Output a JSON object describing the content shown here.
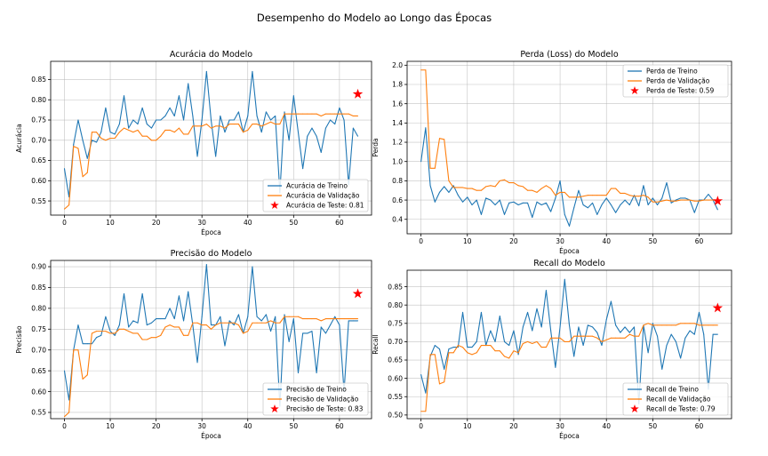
{
  "suptitle": "Desempenho do Modelo ao Longo das Épocas",
  "colors": {
    "train": "#1f77b4",
    "validation": "#ff7f0e",
    "test": "#ff0000"
  },
  "chart_data": [
    {
      "type": "line",
      "title": "Acurácia do Modelo",
      "xlabel": "Época",
      "ylabel": "Acurácia",
      "xlim": [
        -3,
        67
      ],
      "ylim": [
        0.515,
        0.895
      ],
      "xticks": [
        0,
        10,
        20,
        30,
        40,
        50,
        60
      ],
      "yticks": [
        0.55,
        0.6,
        0.65,
        0.7,
        0.75,
        0.8,
        0.85
      ],
      "ytick_labels": [
        "0.55",
        "0.60",
        "0.65",
        "0.70",
        "0.75",
        "0.80",
        "0.85"
      ],
      "grid": true,
      "legend_position": "bottom-right",
      "series": [
        {
          "name": "Acurácia de Treino",
          "color": "#1f77b4",
          "values": [
            0.63,
            0.56,
            0.69,
            0.75,
            0.7,
            0.655,
            0.7,
            0.695,
            0.72,
            0.78,
            0.72,
            0.715,
            0.74,
            0.81,
            0.73,
            0.75,
            0.74,
            0.78,
            0.74,
            0.73,
            0.75,
            0.75,
            0.76,
            0.78,
            0.76,
            0.81,
            0.75,
            0.84,
            0.76,
            0.66,
            0.75,
            0.87,
            0.75,
            0.66,
            0.76,
            0.72,
            0.75,
            0.75,
            0.77,
            0.72,
            0.76,
            0.87,
            0.76,
            0.72,
            0.77,
            0.75,
            0.76,
            0.57,
            0.77,
            0.7,
            0.81,
            0.72,
            0.63,
            0.71,
            0.73,
            0.71,
            0.67,
            0.73,
            0.75,
            0.74,
            0.78,
            0.75,
            0.59,
            0.73,
            0.71
          ]
        },
        {
          "name": "Acurácia de Validação",
          "color": "#ff7f0e",
          "values": [
            0.53,
            0.54,
            0.685,
            0.68,
            0.61,
            0.62,
            0.72,
            0.72,
            0.705,
            0.7,
            0.705,
            0.705,
            0.72,
            0.73,
            0.725,
            0.72,
            0.725,
            0.71,
            0.71,
            0.7,
            0.7,
            0.71,
            0.725,
            0.725,
            0.72,
            0.73,
            0.715,
            0.715,
            0.735,
            0.735,
            0.735,
            0.74,
            0.73,
            0.735,
            0.735,
            0.73,
            0.74,
            0.74,
            0.74,
            0.72,
            0.725,
            0.74,
            0.74,
            0.735,
            0.74,
            0.745,
            0.74,
            0.74,
            0.765,
            0.765,
            0.765,
            0.765,
            0.765,
            0.765,
            0.765,
            0.765,
            0.76,
            0.765,
            0.765,
            0.765,
            0.765,
            0.765,
            0.765,
            0.76,
            0.76
          ]
        },
        {
          "name": "Acurácia de Teste: 0.81",
          "color": "#ff0000",
          "kind": "scatter",
          "x": [
            64
          ],
          "values": [
            0.814
          ]
        }
      ]
    },
    {
      "type": "line",
      "title": "Perda (Loss) do Modelo",
      "xlabel": "Época",
      "ylabel": "Perda",
      "xlim": [
        -3,
        67
      ],
      "ylim": [
        0.25,
        2.04
      ],
      "xticks": [
        0,
        10,
        20,
        30,
        40,
        50,
        60
      ],
      "yticks": [
        0.4,
        0.6,
        0.8,
        1.0,
        1.2,
        1.4,
        1.6,
        1.8,
        2.0
      ],
      "ytick_labels": [
        "0.4",
        "0.6",
        "0.8",
        "1.0",
        "1.2",
        "1.4",
        "1.6",
        "1.8",
        "2.0"
      ],
      "grid": true,
      "legend_position": "top-right",
      "series": [
        {
          "name": "Perda de Treino",
          "color": "#1f77b4",
          "values": [
            1.0,
            1.35,
            0.75,
            0.58,
            0.68,
            0.74,
            0.68,
            0.75,
            0.65,
            0.58,
            0.63,
            0.55,
            0.6,
            0.45,
            0.62,
            0.6,
            0.55,
            0.6,
            0.45,
            0.57,
            0.58,
            0.55,
            0.57,
            0.57,
            0.42,
            0.58,
            0.55,
            0.57,
            0.48,
            0.62,
            0.8,
            0.45,
            0.33,
            0.52,
            0.7,
            0.55,
            0.52,
            0.57,
            0.45,
            0.55,
            0.62,
            0.55,
            0.47,
            0.55,
            0.6,
            0.55,
            0.65,
            0.54,
            0.75,
            0.55,
            0.62,
            0.55,
            0.62,
            0.78,
            0.57,
            0.6,
            0.62,
            0.62,
            0.6,
            0.47,
            0.6,
            0.6,
            0.66,
            0.6,
            0.5
          ]
        },
        {
          "name": "Perda de Validação",
          "color": "#ff7f0e",
          "values": [
            1.95,
            1.95,
            0.93,
            0.93,
            1.24,
            1.23,
            0.8,
            0.73,
            0.73,
            0.73,
            0.72,
            0.72,
            0.7,
            0.7,
            0.74,
            0.75,
            0.74,
            0.8,
            0.81,
            0.78,
            0.78,
            0.75,
            0.74,
            0.7,
            0.7,
            0.68,
            0.72,
            0.75,
            0.72,
            0.65,
            0.68,
            0.68,
            0.63,
            0.63,
            0.63,
            0.64,
            0.65,
            0.65,
            0.65,
            0.65,
            0.65,
            0.72,
            0.72,
            0.67,
            0.67,
            0.65,
            0.64,
            0.64,
            0.65,
            0.63,
            0.58,
            0.58,
            0.59,
            0.6,
            0.59,
            0.59,
            0.6,
            0.6,
            0.6,
            0.59,
            0.59,
            0.6,
            0.6,
            0.6,
            0.6
          ]
        },
        {
          "name": "Perda de Teste: 0.59",
          "color": "#ff0000",
          "kind": "scatter",
          "x": [
            64
          ],
          "values": [
            0.59
          ]
        }
      ]
    },
    {
      "type": "line",
      "title": "Precisão do Modelo",
      "xlabel": "Época",
      "ylabel": "Precisão",
      "xlim": [
        -3,
        67
      ],
      "ylim": [
        0.535,
        0.915
      ],
      "xticks": [
        0,
        10,
        20,
        30,
        40,
        50,
        60
      ],
      "yticks": [
        0.55,
        0.6,
        0.65,
        0.7,
        0.75,
        0.8,
        0.85,
        0.9
      ],
      "ytick_labels": [
        "0.55",
        "0.60",
        "0.65",
        "0.70",
        "0.75",
        "0.80",
        "0.85",
        "0.90"
      ],
      "grid": true,
      "legend_position": "bottom-right",
      "series": [
        {
          "name": "Precisão de Treino",
          "color": "#1f77b4",
          "values": [
            0.65,
            0.58,
            0.7,
            0.76,
            0.715,
            0.715,
            0.715,
            0.73,
            0.735,
            0.78,
            0.745,
            0.735,
            0.76,
            0.835,
            0.755,
            0.77,
            0.765,
            0.835,
            0.76,
            0.765,
            0.775,
            0.775,
            0.775,
            0.8,
            0.775,
            0.83,
            0.77,
            0.84,
            0.76,
            0.67,
            0.78,
            0.905,
            0.76,
            0.76,
            0.78,
            0.71,
            0.77,
            0.76,
            0.785,
            0.74,
            0.78,
            0.9,
            0.78,
            0.77,
            0.785,
            0.745,
            0.78,
            0.565,
            0.785,
            0.72,
            0.775,
            0.645,
            0.74,
            0.74,
            0.745,
            0.645,
            0.755,
            0.74,
            0.76,
            0.78,
            0.76,
            0.6,
            0.77,
            0.77,
            0.77
          ]
        },
        {
          "name": "Precisão de Validação",
          "color": "#ff7f0e",
          "values": [
            0.54,
            0.55,
            0.7,
            0.7,
            0.63,
            0.64,
            0.74,
            0.745,
            0.745,
            0.745,
            0.74,
            0.74,
            0.75,
            0.75,
            0.745,
            0.74,
            0.74,
            0.725,
            0.725,
            0.73,
            0.73,
            0.735,
            0.755,
            0.76,
            0.755,
            0.755,
            0.735,
            0.735,
            0.765,
            0.765,
            0.76,
            0.76,
            0.75,
            0.76,
            0.765,
            0.765,
            0.765,
            0.765,
            0.76,
            0.74,
            0.745,
            0.765,
            0.765,
            0.765,
            0.765,
            0.77,
            0.765,
            0.765,
            0.78,
            0.78,
            0.78,
            0.78,
            0.775,
            0.775,
            0.775,
            0.775,
            0.77,
            0.775,
            0.775,
            0.775,
            0.775,
            0.775,
            0.775,
            0.775,
            0.775
          ]
        },
        {
          "name": "Precisão de Teste: 0.83",
          "color": "#ff0000",
          "kind": "scatter",
          "x": [
            64
          ],
          "values": [
            0.835
          ]
        }
      ]
    },
    {
      "type": "line",
      "title": "Recall do Modelo",
      "xlabel": "Época",
      "ylabel": "Recall",
      "xlim": [
        -3,
        67
      ],
      "ylim": [
        0.49,
        0.895
      ],
      "xticks": [
        0,
        10,
        20,
        30,
        40,
        50,
        60
      ],
      "yticks": [
        0.5,
        0.55,
        0.6,
        0.65,
        0.7,
        0.75,
        0.8,
        0.85
      ],
      "ytick_labels": [
        "0.50",
        "0.55",
        "0.60",
        "0.65",
        "0.70",
        "0.75",
        "0.80",
        "0.85"
      ],
      "grid": true,
      "legend_position": "bottom-right",
      "series": [
        {
          "name": "Recall de Treino",
          "color": "#1f77b4",
          "values": [
            0.61,
            0.56,
            0.66,
            0.69,
            0.68,
            0.625,
            0.68,
            0.685,
            0.685,
            0.78,
            0.685,
            0.685,
            0.7,
            0.78,
            0.69,
            0.73,
            0.7,
            0.77,
            0.7,
            0.69,
            0.73,
            0.665,
            0.74,
            0.78,
            0.73,
            0.79,
            0.74,
            0.84,
            0.73,
            0.63,
            0.74,
            0.87,
            0.745,
            0.66,
            0.74,
            0.69,
            0.745,
            0.74,
            0.725,
            0.69,
            0.76,
            0.81,
            0.745,
            0.725,
            0.74,
            0.725,
            0.74,
            0.53,
            0.745,
            0.67,
            0.75,
            0.715,
            0.625,
            0.69,
            0.72,
            0.7,
            0.655,
            0.71,
            0.73,
            0.72,
            0.78,
            0.72,
            0.57,
            0.72,
            0.72
          ]
        },
        {
          "name": "Recall de Validação",
          "color": "#ff7f0e",
          "values": [
            0.51,
            0.51,
            0.665,
            0.665,
            0.585,
            0.59,
            0.67,
            0.67,
            0.69,
            0.685,
            0.67,
            0.665,
            0.67,
            0.69,
            0.69,
            0.69,
            0.675,
            0.675,
            0.66,
            0.655,
            0.675,
            0.67,
            0.695,
            0.7,
            0.695,
            0.7,
            0.685,
            0.685,
            0.71,
            0.71,
            0.71,
            0.7,
            0.7,
            0.715,
            0.715,
            0.715,
            0.715,
            0.715,
            0.71,
            0.7,
            0.705,
            0.71,
            0.71,
            0.71,
            0.71,
            0.72,
            0.715,
            0.715,
            0.745,
            0.75,
            0.745,
            0.745,
            0.745,
            0.745,
            0.745,
            0.745,
            0.75,
            0.75,
            0.75,
            0.75,
            0.745,
            0.745,
            0.745,
            0.745,
            0.745
          ]
        },
        {
          "name": "Recall de Teste: 0.79",
          "color": "#ff0000",
          "kind": "scatter",
          "x": [
            64
          ],
          "values": [
            0.792
          ]
        }
      ]
    }
  ]
}
